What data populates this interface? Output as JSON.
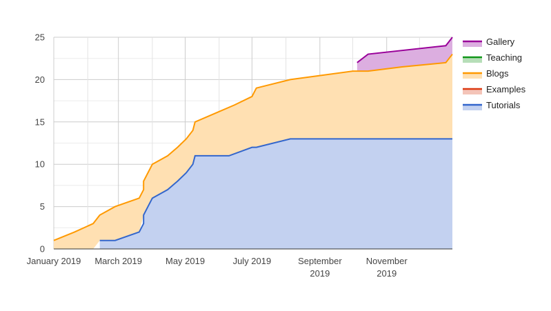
{
  "chart_data": {
    "type": "area",
    "stacked": true,
    "ylim": [
      0,
      25
    ],
    "yticks": [
      "0",
      "5",
      "10",
      "15",
      "20",
      "25"
    ],
    "xlim": [
      "2019-01-01",
      "2019-12-31"
    ],
    "xticks": [
      {
        "date": "2019-01-01",
        "lines": [
          "January 2019"
        ]
      },
      {
        "date": "2019-03-01",
        "lines": [
          "March 2019"
        ]
      },
      {
        "date": "2019-05-01",
        "lines": [
          "May 2019"
        ]
      },
      {
        "date": "2019-07-01",
        "lines": [
          "July 2019"
        ]
      },
      {
        "date": "2019-09-01",
        "lines": [
          "September",
          "2019"
        ]
      },
      {
        "date": "2019-11-01",
        "lines": [
          "November",
          "2019"
        ]
      }
    ],
    "grid": true,
    "legend_position": "right",
    "series": [
      {
        "name": "Tutorials",
        "color": "#3366cc",
        "fill": "#c3d1f0",
        "points": [
          [
            "2019-02-12",
            1
          ],
          [
            "2019-02-26",
            1
          ],
          [
            "2019-03-20",
            2
          ],
          [
            "2019-03-24",
            3
          ],
          [
            "2019-03-24",
            4
          ],
          [
            "2019-03-28",
            5
          ],
          [
            "2019-04-01",
            6
          ],
          [
            "2019-04-15",
            7
          ],
          [
            "2019-04-24",
            8
          ],
          [
            "2019-05-02",
            9
          ],
          [
            "2019-05-08",
            10
          ],
          [
            "2019-05-10",
            11
          ],
          [
            "2019-06-10",
            11
          ],
          [
            "2019-07-01",
            12
          ],
          [
            "2019-07-05",
            12
          ],
          [
            "2019-08-05",
            13
          ],
          [
            "2019-12-31",
            13
          ]
        ]
      },
      {
        "name": "Examples",
        "color": "#dc3912",
        "fill": "#f4c4b8",
        "points": []
      },
      {
        "name": "Blogs",
        "color": "#ff9900",
        "fill": "#ffe0b2",
        "points": [
          [
            "2019-01-01",
            1
          ],
          [
            "2019-01-20",
            2
          ],
          [
            "2019-02-06",
            3
          ],
          [
            "2019-02-12",
            4
          ],
          [
            "2019-02-26",
            5
          ],
          [
            "2019-03-20",
            6
          ],
          [
            "2019-03-24",
            7
          ],
          [
            "2019-03-24",
            8
          ],
          [
            "2019-03-28",
            9
          ],
          [
            "2019-04-01",
            10
          ],
          [
            "2019-04-15",
            11
          ],
          [
            "2019-04-24",
            12
          ],
          [
            "2019-05-02",
            13
          ],
          [
            "2019-05-08",
            14
          ],
          [
            "2019-05-10",
            15
          ],
          [
            "2019-05-28",
            16
          ],
          [
            "2019-06-15",
            17
          ],
          [
            "2019-07-01",
            18
          ],
          [
            "2019-07-05",
            19
          ],
          [
            "2019-08-05",
            20
          ],
          [
            "2019-10-01",
            21
          ],
          [
            "2019-10-15",
            21
          ],
          [
            "2019-11-15",
            21.5
          ],
          [
            "2019-12-25",
            22
          ],
          [
            "2019-12-31",
            23
          ]
        ]
      },
      {
        "name": "Teaching",
        "color": "#109618",
        "fill": "#b6deb8",
        "points": []
      },
      {
        "name": "Gallery",
        "color": "#990099",
        "fill": "#dcaee0",
        "points": [
          [
            "2019-10-05",
            22
          ],
          [
            "2019-10-15",
            23
          ],
          [
            "2019-12-25",
            24
          ],
          [
            "2019-12-31",
            25
          ]
        ]
      }
    ],
    "legend": [
      "Gallery",
      "Teaching",
      "Blogs",
      "Examples",
      "Tutorials"
    ]
  }
}
